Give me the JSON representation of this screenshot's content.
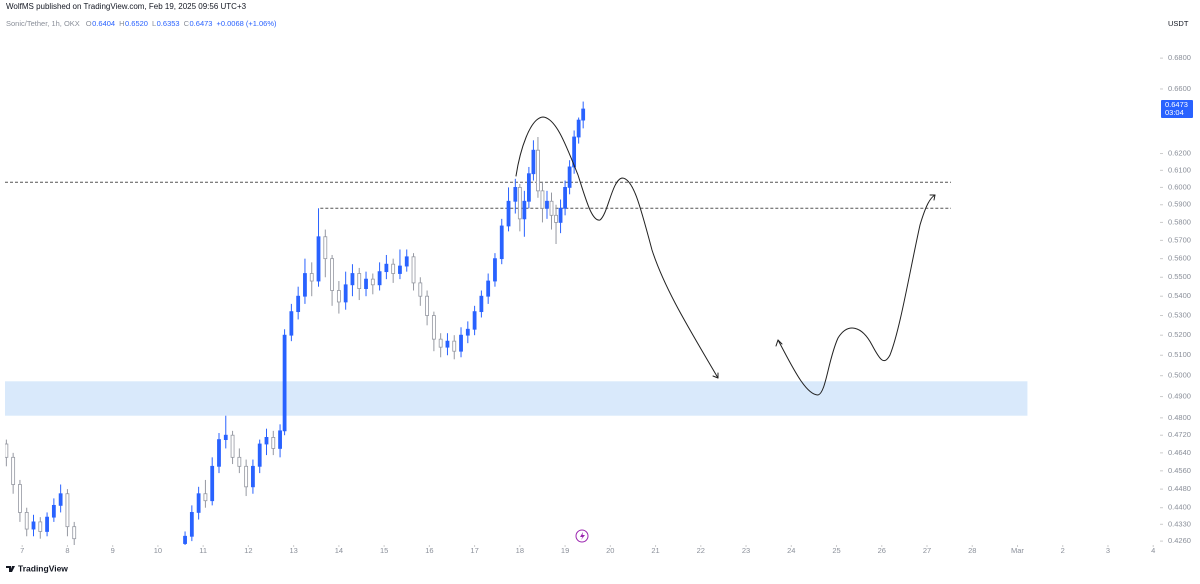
{
  "header": {
    "title": "WolfMS published on TradingView.com, Feb 19, 2025 09:56 UTC+3"
  },
  "footer": {
    "brand": "TradingView"
  },
  "chart_data": {
    "type": "candlestick",
    "symbol": "Sonic/Tether, 1h, OKX",
    "legend": [
      {
        "key": "O",
        "value": "0.6404"
      },
      {
        "key": "H",
        "value": "0.6520"
      },
      {
        "key": "L",
        "value": "0.6353"
      },
      {
        "key": "C",
        "value": "0.6473"
      }
    ],
    "change": "+0.0068 (+1.06%)",
    "currency": "USDT",
    "countdown": "03:04",
    "log_scale": true,
    "up_color": "#2962ff",
    "down_color": "#9598a1",
    "x": [
      6.65,
      6.8,
      6.95,
      7.1,
      7.25,
      7.4,
      7.55,
      7.7,
      7.85,
      8.0,
      8.15,
      10.6,
      10.75,
      10.9,
      11.05,
      11.2,
      11.35,
      11.5,
      11.65,
      11.8,
      11.95,
      12.1,
      12.25,
      12.4,
      12.55,
      12.7,
      12.8,
      12.95,
      13.1,
      13.25,
      13.4,
      13.55,
      13.7,
      13.85,
      14.0,
      14.15,
      14.3,
      14.45,
      14.6,
      14.75,
      14.9,
      15.05,
      15.2,
      15.35,
      15.5,
      15.65,
      15.8,
      15.95,
      16.1,
      16.25,
      16.4,
      16.55,
      16.7,
      16.85,
      17.0,
      17.15,
      17.3,
      17.45,
      17.6,
      17.75,
      17.9,
      18.0,
      18.1,
      18.2,
      18.3,
      18.4,
      18.5,
      18.6,
      18.7,
      18.8,
      18.9,
      19.0,
      19.1,
      19.2,
      19.3,
      19.4
    ],
    "open": [
      0.468,
      0.462,
      0.45,
      0.438,
      0.431,
      0.434,
      0.43,
      0.436,
      0.441,
      0.446,
      0.432,
      0.425,
      0.428,
      0.438,
      0.446,
      0.443,
      0.458,
      0.47,
      0.472,
      0.462,
      0.458,
      0.449,
      0.458,
      0.468,
      0.471,
      0.466,
      0.474,
      0.52,
      0.532,
      0.54,
      0.552,
      0.548,
      0.572,
      0.56,
      0.543,
      0.537,
      0.546,
      0.552,
      0.544,
      0.549,
      0.546,
      0.553,
      0.557,
      0.552,
      0.556,
      0.561,
      0.547,
      0.54,
      0.53,
      0.518,
      0.514,
      0.517,
      0.512,
      0.52,
      0.523,
      0.532,
      0.54,
      0.548,
      0.56,
      0.578,
      0.592,
      0.6,
      0.582,
      0.592,
      0.608,
      0.622,
      0.598,
      0.588,
      0.592,
      0.584,
      0.58,
      0.588,
      0.6,
      0.612,
      0.63,
      0.6404
    ],
    "high": [
      0.47,
      0.464,
      0.452,
      0.44,
      0.437,
      0.436,
      0.438,
      0.444,
      0.45,
      0.448,
      0.434,
      0.43,
      0.441,
      0.449,
      0.452,
      0.462,
      0.473,
      0.481,
      0.474,
      0.466,
      0.461,
      0.461,
      0.47,
      0.475,
      0.474,
      0.477,
      0.523,
      0.536,
      0.545,
      0.56,
      0.558,
      0.588,
      0.576,
      0.562,
      0.548,
      0.553,
      0.557,
      0.555,
      0.553,
      0.552,
      0.558,
      0.562,
      0.56,
      0.565,
      0.565,
      0.563,
      0.55,
      0.543,
      0.532,
      0.521,
      0.521,
      0.52,
      0.524,
      0.527,
      0.535,
      0.543,
      0.552,
      0.563,
      0.582,
      0.6,
      0.605,
      0.602,
      0.598,
      0.612,
      0.628,
      0.63,
      0.603,
      0.598,
      0.597,
      0.59,
      0.593,
      0.604,
      0.616,
      0.634,
      0.642,
      0.652
    ],
    "low": [
      0.458,
      0.446,
      0.434,
      0.428,
      0.428,
      0.427,
      0.428,
      0.434,
      0.438,
      0.428,
      0.424,
      0.423,
      0.426,
      0.435,
      0.44,
      0.441,
      0.455,
      0.466,
      0.459,
      0.455,
      0.445,
      0.446,
      0.455,
      0.463,
      0.463,
      0.462,
      0.472,
      0.517,
      0.528,
      0.536,
      0.54,
      0.545,
      0.55,
      0.535,
      0.531,
      0.533,
      0.54,
      0.538,
      0.54,
      0.541,
      0.543,
      0.549,
      0.547,
      0.549,
      0.553,
      0.543,
      0.535,
      0.525,
      0.512,
      0.509,
      0.51,
      0.508,
      0.509,
      0.516,
      0.52,
      0.529,
      0.536,
      0.545,
      0.557,
      0.575,
      0.585,
      0.575,
      0.572,
      0.588,
      0.604,
      0.594,
      0.58,
      0.582,
      0.576,
      0.568,
      0.574,
      0.584,
      0.596,
      0.608,
      0.626,
      0.6353
    ],
    "close": [
      0.462,
      0.45,
      0.438,
      0.431,
      0.434,
      0.43,
      0.436,
      0.441,
      0.446,
      0.432,
      0.427,
      0.428,
      0.438,
      0.446,
      0.443,
      0.458,
      0.47,
      0.472,
      0.462,
      0.458,
      0.449,
      0.458,
      0.468,
      0.471,
      0.466,
      0.474,
      0.52,
      0.532,
      0.54,
      0.552,
      0.548,
      0.572,
      0.56,
      0.543,
      0.537,
      0.546,
      0.552,
      0.544,
      0.549,
      0.546,
      0.553,
      0.557,
      0.552,
      0.556,
      0.561,
      0.547,
      0.54,
      0.53,
      0.518,
      0.514,
      0.517,
      0.512,
      0.52,
      0.523,
      0.532,
      0.54,
      0.548,
      0.56,
      0.578,
      0.592,
      0.6,
      0.582,
      0.592,
      0.608,
      0.622,
      0.598,
      0.588,
      0.592,
      0.584,
      0.58,
      0.588,
      0.6,
      0.612,
      0.63,
      0.6404,
      0.6473
    ],
    "xlim": [
      6.62,
      32.15
    ],
    "ylim": [
      0.4244,
      0.709
    ],
    "xticks": [
      7,
      8,
      9,
      10,
      11,
      12,
      13,
      14,
      15,
      16,
      17,
      18,
      19,
      20,
      21,
      22,
      23,
      24,
      25,
      26,
      27,
      28,
      {
        "value": 29,
        "label": "Mar"
      },
      {
        "value": 30,
        "label": "2"
      },
      {
        "value": 31,
        "label": "3"
      },
      {
        "value": 32,
        "label": "4"
      }
    ],
    "yticks": [
      {
        "value": 0.68,
        "label": "0.6800"
      },
      {
        "value": 0.66,
        "label": "0.6600"
      },
      {
        "value": 0.62,
        "label": "0.6200"
      },
      {
        "value": 0.61,
        "label": "0.6100"
      },
      {
        "value": 0.6,
        "label": "0.6000"
      },
      {
        "value": 0.59,
        "label": "0.5900"
      },
      {
        "value": 0.58,
        "label": "0.5800"
      },
      {
        "value": 0.57,
        "label": "0.5700"
      },
      {
        "value": 0.56,
        "label": "0.5600"
      },
      {
        "value": 0.55,
        "label": "0.5500"
      },
      {
        "value": 0.54,
        "label": "0.5400"
      },
      {
        "value": 0.53,
        "label": "0.5300"
      },
      {
        "value": 0.52,
        "label": "0.5200"
      },
      {
        "value": 0.51,
        "label": "0.5100"
      },
      {
        "value": 0.5,
        "label": "0.5000"
      },
      {
        "value": 0.49,
        "label": "0.4900"
      },
      {
        "value": 0.48,
        "label": "0.4800"
      },
      {
        "value": 0.472,
        "label": "0.4720"
      },
      {
        "value": 0.464,
        "label": "0.4640"
      },
      {
        "value": 0.456,
        "label": "0.4560"
      },
      {
        "value": 0.448,
        "label": "0.4480"
      },
      {
        "value": 0.44,
        "label": "0.4400"
      },
      {
        "value": 0.433,
        "label": "0.4330"
      },
      {
        "value": 0.426,
        "label": "0.4260"
      }
    ],
    "hlines": [
      {
        "value": 0.603,
        "x": [
          6.62,
          27.53
        ]
      },
      {
        "value": 0.588,
        "x": [
          13.59,
          27.53
        ]
      }
    ],
    "zone": {
      "low": 0.481,
      "high": 0.4973,
      "x": [
        6.62,
        29.22
      ],
      "color": "#cfe3fa"
    }
  }
}
